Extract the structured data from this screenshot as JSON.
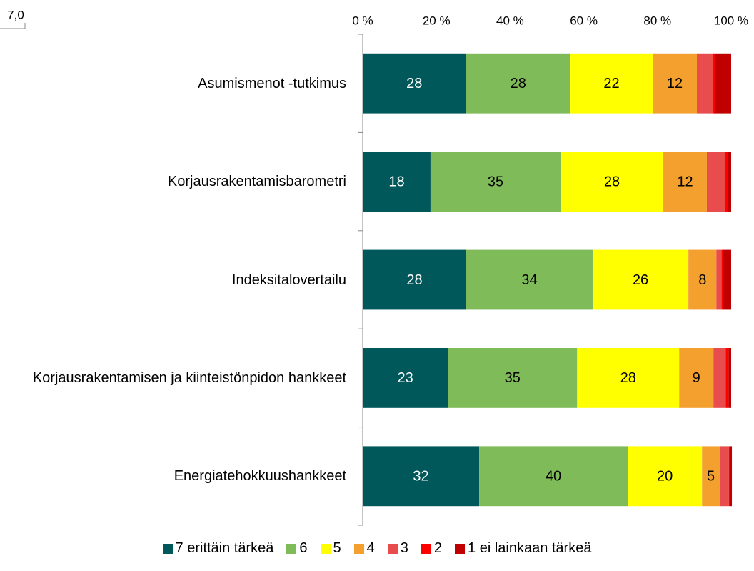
{
  "chart_data": {
    "type": "stacked-bar-horizontal",
    "annotation": "7,0",
    "categories": [
      "Asumismenot -tutkimus",
      "Korjausrakentamisbarometri",
      "Indeksitalovertailu",
      "Korjausrakentamisen ja kiinteistönpidon hankkeet",
      "Energiatehokkuushankkeet"
    ],
    "series": [
      {
        "name": "7 erittäin tärkeä",
        "color": "#00585a",
        "values": [
          28.0,
          18.4,
          28.1,
          23.1,
          31.6
        ],
        "value_labels": [
          "28",
          "18",
          "28",
          "23",
          "32"
        ]
      },
      {
        "name": "6",
        "color": "#80bb5a",
        "values": [
          28.4,
          35.3,
          34.3,
          35.1,
          40.3
        ],
        "value_labels": [
          "28",
          "35",
          "34",
          "35",
          "40"
        ]
      },
      {
        "name": "5",
        "color": "#ffff00",
        "values": [
          22.3,
          27.9,
          26.0,
          27.7,
          20.2
        ],
        "value_labels": [
          "22",
          "28",
          "26",
          "28",
          "20"
        ]
      },
      {
        "name": "4",
        "color": "#f4a02e",
        "values": [
          12.0,
          11.8,
          7.6,
          9.3,
          4.8
        ],
        "value_labels": [
          "12",
          "12",
          "8",
          "9",
          "5"
        ]
      },
      {
        "name": "3",
        "color": "#e84c4c",
        "values": [
          4.3,
          5.0,
          1.4,
          3.3,
          2.5
        ]
      },
      {
        "name": "2",
        "color": "#ff0000",
        "values": [
          0.6,
          0.8,
          0.4,
          0.8,
          0.4
        ]
      },
      {
        "name": "1 ei lainkaan tärkeä",
        "color": "#c00000",
        "values": [
          4.4,
          0.8,
          2.2,
          0.7,
          0.4
        ]
      }
    ],
    "xlim": [
      0,
      100
    ],
    "xticks": [
      {
        "value": 0,
        "label": "0 %"
      },
      {
        "value": 20,
        "label": "20 %"
      },
      {
        "value": 40,
        "label": "40 %"
      },
      {
        "value": 60,
        "label": "60 %"
      },
      {
        "value": 80,
        "label": "80 %"
      },
      {
        "value": 100,
        "label": "100 %"
      }
    ],
    "white_label_series": 0
  }
}
